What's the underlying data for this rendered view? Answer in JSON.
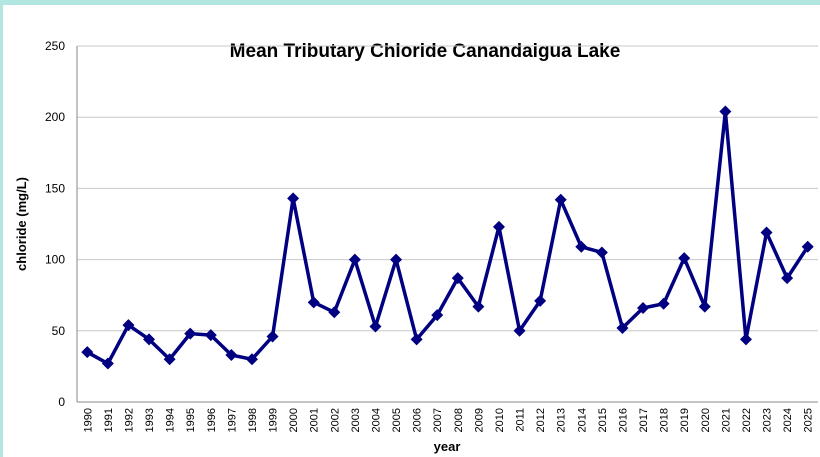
{
  "chart_data": {
    "type": "line",
    "title": "Mean Tributary Chloride Canandaigua Lake",
    "x_label": "year",
    "y_label": "chloride (mg/L)",
    "categories": [
      "1990",
      "1991",
      "1992",
      "1993",
      "1994",
      "1995",
      "1996",
      "1997",
      "1998",
      "1999",
      "2000",
      "2001",
      "2002",
      "2003",
      "2004",
      "2005",
      "2006",
      "2007",
      "2008",
      "2009",
      "2010",
      "2011",
      "2012",
      "2013",
      "2014",
      "2015",
      "2016",
      "2017",
      "2018",
      "2019",
      "2020",
      "2021",
      "2022",
      "2023",
      "2024",
      "2025"
    ],
    "series": [
      {
        "name": "chloride",
        "color": "#000080",
        "values": [
          35,
          27,
          54,
          44,
          30,
          48,
          47,
          33,
          30,
          46,
          143,
          70,
          63,
          100,
          53,
          100,
          44,
          61,
          87,
          67,
          123,
          50,
          71,
          142,
          109,
          105,
          52,
          66,
          69,
          101,
          67,
          204,
          44,
          119,
          87,
          109
        ]
      }
    ],
    "ylim": [
      0,
      250
    ],
    "yticks": [
      0,
      50,
      100,
      150,
      200,
      250
    ],
    "grid": true
  }
}
